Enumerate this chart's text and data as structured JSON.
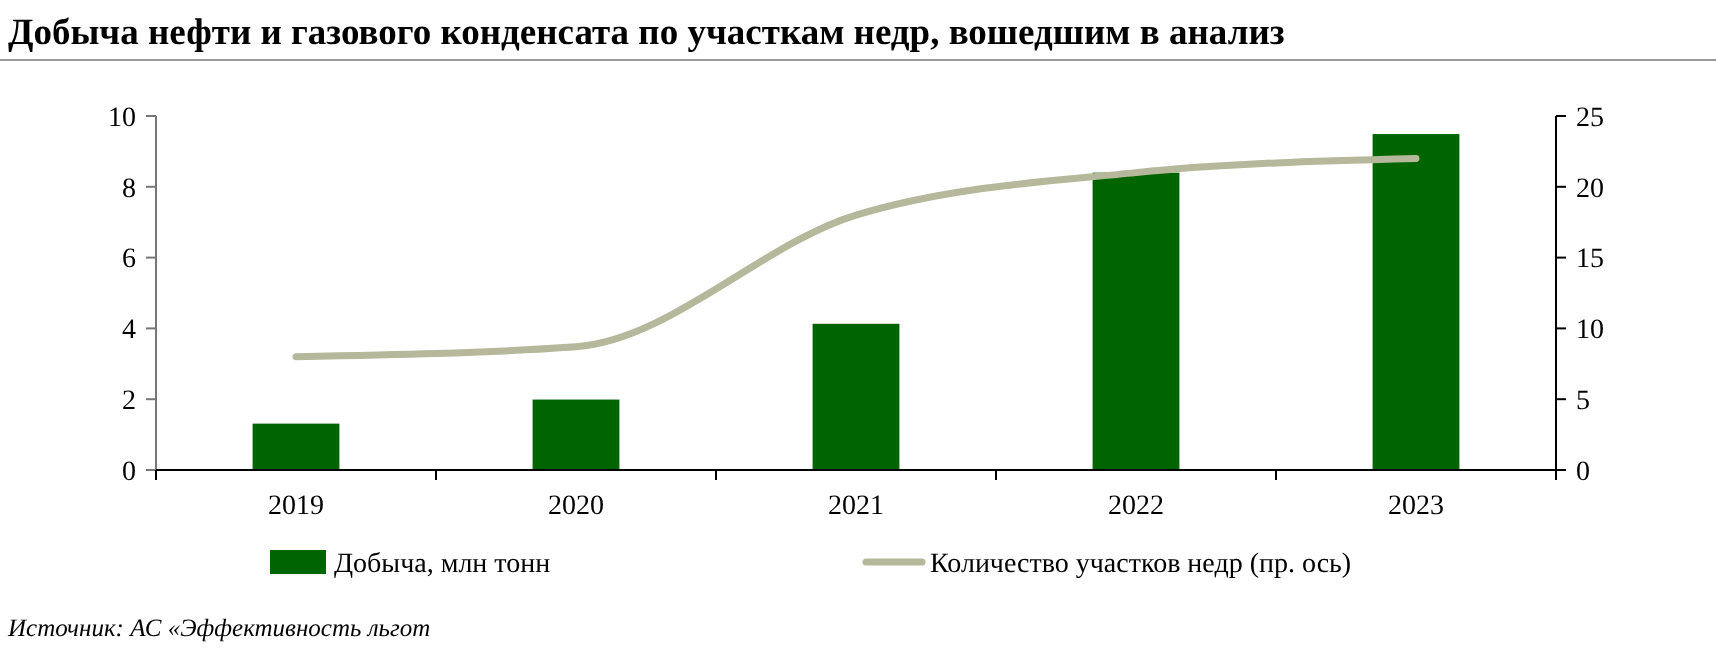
{
  "chart_data": {
    "type": "bar",
    "title": "Добыча нефти и газового конденсата по участкам недр, вошедшим в анализ",
    "categories": [
      "2019",
      "2020",
      "2021",
      "2022",
      "2023"
    ],
    "series": [
      {
        "name": "Добыча, млн тонн",
        "color": "#006400",
        "values": [
          1.31,
          1.99,
          4.13,
          8.4,
          9.49
        ]
      },
      {
        "name": "Количество участков недр (пр. ось)",
        "color": "#b5b89a",
        "type": "line",
        "axis": "y2",
        "values": [
          8.0,
          8.7,
          18.0,
          21.0,
          22.0
        ]
      }
    ],
    "ylim": [
      0,
      10
    ],
    "yticks": [
      0,
      2,
      4,
      6,
      8,
      10
    ],
    "y2lim": [
      0,
      25
    ],
    "y2ticks": [
      0,
      5,
      10,
      15,
      20,
      25
    ],
    "legend": "bottom",
    "annotations": [
      "Источник: АС «Эффективность льгот"
    ]
  }
}
